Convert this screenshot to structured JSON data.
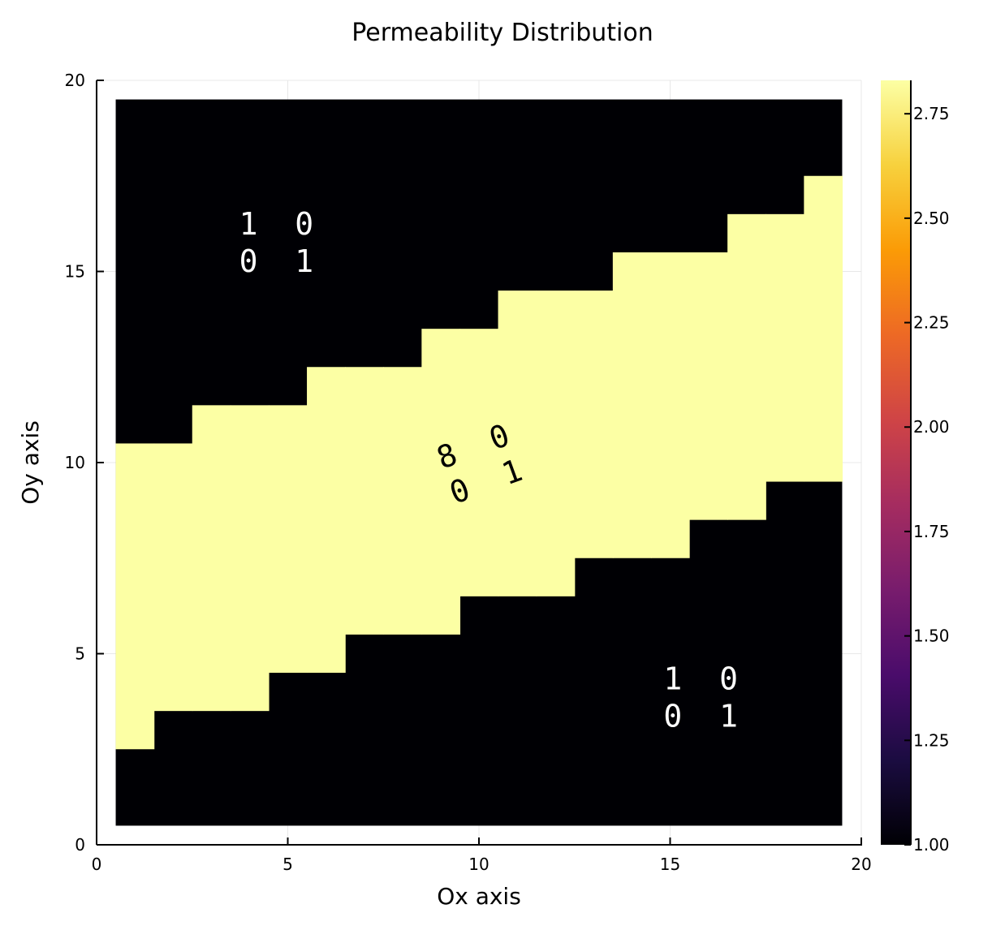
{
  "chart_data": {
    "type": "heatmap",
    "title": "Permeability Distribution",
    "xlabel": "Ox axis",
    "ylabel": "Oy axis",
    "xlim": [
      0,
      20
    ],
    "ylim": [
      0,
      20
    ],
    "x_ticks": [
      "0",
      "5",
      "10",
      "15",
      "20"
    ],
    "y_ticks": [
      "0",
      "5",
      "10",
      "15",
      "20"
    ],
    "grid": true,
    "grid_size": [
      19,
      19
    ],
    "cell_extent": [
      0.5,
      19.5
    ],
    "band_cells": {
      "description": "yellow cells per column j (x = j), rows i (y = i) inclusive",
      "columns": [
        {
          "x": 1,
          "y_from": 3,
          "y_to": 10
        },
        {
          "x": 2,
          "y_from": 4,
          "y_to": 10
        },
        {
          "x": 3,
          "y_from": 4,
          "y_to": 11
        },
        {
          "x": 4,
          "y_from": 4,
          "y_to": 11
        },
        {
          "x": 5,
          "y_from": 5,
          "y_to": 11
        },
        {
          "x": 6,
          "y_from": 5,
          "y_to": 12
        },
        {
          "x": 7,
          "y_from": 6,
          "y_to": 12
        },
        {
          "x": 8,
          "y_from": 6,
          "y_to": 12
        },
        {
          "x": 9,
          "y_from": 6,
          "y_to": 13
        },
        {
          "x": 10,
          "y_from": 7,
          "y_to": 13
        },
        {
          "x": 11,
          "y_from": 7,
          "y_to": 14
        },
        {
          "x": 12,
          "y_from": 7,
          "y_to": 14
        },
        {
          "x": 13,
          "y_from": 8,
          "y_to": 14
        },
        {
          "x": 14,
          "y_from": 8,
          "y_to": 15
        },
        {
          "x": 15,
          "y_from": 8,
          "y_to": 15
        },
        {
          "x": 16,
          "y_from": 9,
          "y_to": 15
        },
        {
          "x": 17,
          "y_from": 9,
          "y_to": 16
        },
        {
          "x": 18,
          "y_from": 10,
          "y_to": 16
        },
        {
          "x": 19,
          "y_from": 10,
          "y_to": 17
        }
      ]
    },
    "low_value": 1.0,
    "high_value": 2.83,
    "colorbar": {
      "min": 1.0,
      "max": 2.83,
      "ticks": [
        1.0,
        1.25,
        1.5,
        1.75,
        2.0,
        2.25,
        2.5,
        2.75
      ],
      "tick_labels": [
        "1.00",
        "1.25",
        "1.50",
        "1.75",
        "2.00",
        "2.25",
        "2.50",
        "2.75"
      ],
      "colormap": "inferno",
      "stops": [
        "#000004",
        "#1b0c41",
        "#4a0c6b",
        "#781c6d",
        "#a52c60",
        "#cf4446",
        "#ed6925",
        "#fb9b06",
        "#f7d13d",
        "#fcffa4"
      ]
    },
    "annotations": [
      {
        "name": "upper-left",
        "x": 4.7,
        "y": 15.8,
        "rows": [
          "1  0",
          "0  1"
        ],
        "color": "#ffffff",
        "rotation": 0
      },
      {
        "name": "center",
        "x": 10.0,
        "y": 10.0,
        "rows": [
          "8  0",
          "0  1"
        ],
        "color": "#000000",
        "rotation": -20
      },
      {
        "name": "lower-right",
        "x": 15.8,
        "y": 3.9,
        "rows": [
          "1  0",
          "0  1"
        ],
        "color": "#ffffff",
        "rotation": 0
      }
    ],
    "colors": {
      "low": "#000004",
      "high": "#fcffa4",
      "grid": "#e8e8e8",
      "axis": "#000000"
    }
  }
}
